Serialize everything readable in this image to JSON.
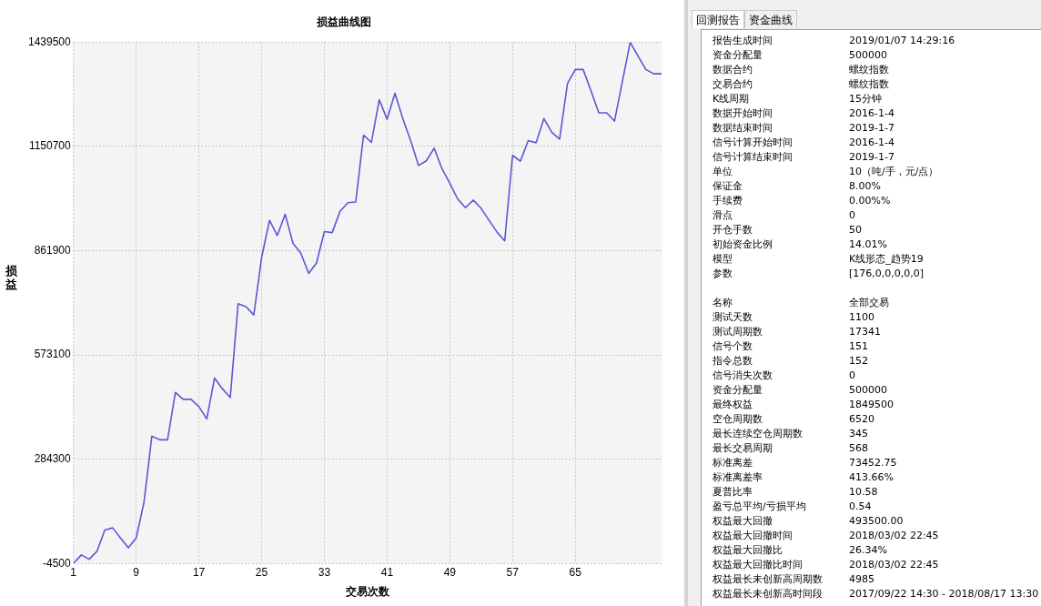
{
  "chart_data": [
    {
      "type": "line",
      "title": "损益曲线图",
      "xlabel": "交易次数",
      "ylabel": "损益",
      "x": [
        1,
        2,
        3,
        4,
        5,
        6,
        7,
        8,
        9,
        10,
        11,
        12,
        13,
        14,
        15,
        16,
        17,
        18,
        19,
        20,
        21,
        22,
        23,
        24,
        25,
        26,
        27,
        28,
        29,
        30,
        31,
        32,
        33,
        34,
        35,
        36,
        37,
        38,
        39,
        40,
        41,
        42,
        43,
        44,
        45,
        46,
        47,
        48,
        49,
        50,
        51,
        52,
        53,
        54,
        55,
        56,
        57,
        58,
        59,
        60,
        61,
        62,
        63,
        64,
        65,
        66,
        67,
        68,
        69,
        70,
        71,
        72,
        73,
        74,
        75,
        76
      ],
      "series": [
        {
          "color": "#5b57d6",
          "values": [
            -4500,
            19000,
            7000,
            29000,
            88000,
            94000,
            66000,
            39000,
            66000,
            165000,
            348000,
            338000,
            338000,
            469000,
            450000,
            450000,
            430000,
            396000,
            509000,
            479000,
            455000,
            715000,
            707000,
            684000,
            843000,
            946000,
            904000,
            963000,
            882000,
            855000,
            799000,
            828000,
            915000,
            912000,
            971000,
            995000,
            997000,
            1182000,
            1162000,
            1280000,
            1226000,
            1298000,
            1228000,
            1167000,
            1098000,
            1111000,
            1146000,
            1089000,
            1049000,
            1005000,
            981000,
            1002000,
            979000,
            946000,
            914000,
            889000,
            1126000,
            1110000,
            1167000,
            1161000,
            1228000,
            1190000,
            1171000,
            1325000,
            1364000,
            1364000,
            1305000,
            1244000,
            1244000,
            1221000,
            1330000,
            1439500,
            1401000,
            1364000,
            1352000,
            1352000
          ]
        }
      ],
      "xlim": [
        1,
        76
      ],
      "xticks": [
        1,
        9,
        17,
        25,
        33,
        41,
        49,
        57,
        65
      ],
      "ylim": [
        -4500,
        1439500
      ],
      "yticks": [
        -4500,
        284300,
        573100,
        861900,
        1150700,
        1439500
      ],
      "grid": true,
      "legend": false,
      "marker": "none",
      "line_style": "solid"
    },
    {
      "type": "other",
      "annotations": [
        "回测报告",
        "资金曲线",
        "报告生成时间",
        "2019/01/07 14:29:16",
        "资金分配量",
        "500000",
        "数据合约",
        "螺纹指数",
        "交易合约",
        "螺纹指数",
        "K线周期",
        "15分钟",
        "数据开始时间",
        "2016-1-4",
        "数据结束时间",
        "2019-1-7",
        "信号计算开始时间",
        "2016-1-4",
        "信号计算结束时间",
        "2019-1-7",
        "单位",
        "10（吨/手，元/点）",
        "保证金",
        "8.00%",
        "手续费",
        "0.00%%",
        "滑点",
        "0",
        "开仓手数",
        "50",
        "初始资金比例",
        "14.01%",
        "模型",
        "K线形态_趋势19",
        "参数",
        "[176,0,0,0,0,0]",
        "名称",
        "全部交易",
        "测试天数",
        "1100",
        "测试周期数",
        "17341",
        "信号个数",
        "151",
        "指令总数",
        "152",
        "信号消失次数",
        "0",
        "资金分配量",
        "500000",
        "最终权益",
        "1849500",
        "空仓周期数",
        "6520",
        "最长连续空仓周期数",
        "345",
        "最长交易周期",
        "568",
        "标准离差",
        "73452.75",
        "标准离差率",
        "413.66%",
        "夏普比率",
        "10.58",
        "盈亏总平均/亏损平均",
        "0.54",
        "权益最大回撤",
        "493500.00",
        "权益最大回撤时间",
        "2018/03/02 22:45",
        "权益最大回撤比",
        "26.34%",
        "权益最大回撤比时间",
        "2018/03/02 22:45",
        "权益最长未创新高周期数",
        "4985",
        "权益最长未创新高时间段",
        "2017/09/22 14:30 - 2018/08/17 13:30"
      ]
    }
  ]
}
